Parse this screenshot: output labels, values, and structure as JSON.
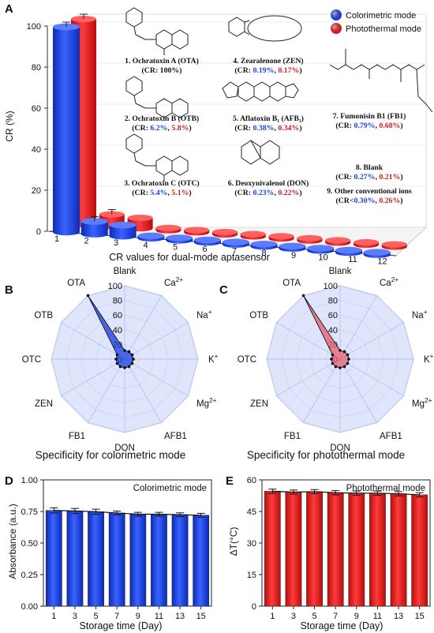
{
  "panels": {
    "A": {
      "label": "A",
      "chart_data": {
        "type": "bar",
        "title": "",
        "xlabel": "CR values for dual-mode aptasensor",
        "ylabel": "CR (%)",
        "ylim": [
          0,
          100
        ],
        "yticks": [
          "0",
          "20",
          "40",
          "60",
          "80",
          "100"
        ],
        "categories": [
          "1",
          "2",
          "3",
          "4",
          "5",
          "6",
          "7",
          "8",
          "9",
          "10",
          "11",
          "12"
        ],
        "legend_position": "top-right",
        "series": [
          {
            "name": "Colorimetric mode",
            "color": "#1a3fe0",
            "values": [
              100,
              6.2,
              5.4,
              0.19,
              0.38,
              0.23,
              0.79,
              0.27,
              0.3,
              0.3,
              0.3,
              0.3
            ]
          },
          {
            "name": "Photothermal mode",
            "color": "#e21c1c",
            "values": [
              100,
              5.8,
              5.1,
              0.17,
              0.34,
              0.22,
              0.68,
              0.21,
              0.26,
              0.26,
              0.26,
              0.26
            ]
          }
        ]
      },
      "annotations": [
        {
          "name": "1. Ochratoxin A (OTA)",
          "cr": "(CR: 100%)",
          "c": "",
          "p": ""
        },
        {
          "name": "2. Ochratoxin B (OTB)",
          "cr": "(CR: ",
          "c": "6.2%",
          "p": "5.8%"
        },
        {
          "name": "3. Ochratoxin C (OTC)",
          "cr": "(CR: ",
          "c": "5.4%",
          "p": "5.1%"
        },
        {
          "name": "4. Zearalenone (ZEN)",
          "cr": "(CR: ",
          "c": "0.19%",
          "p": "0.17%"
        },
        {
          "name": "5. Aflatoxin B₁ (AFB₁)",
          "cr": "(CR: ",
          "c": "0.38%",
          "p": "0.34%"
        },
        {
          "name": "6. Deoxynivalenol (DON)",
          "cr": "(CR: ",
          "c": "0.23%",
          "p": "0.22%"
        },
        {
          "name": "7. Fumonisin B1 (FB1)",
          "cr": "(CR: ",
          "c": "0.79%",
          "p": "0.68%"
        },
        {
          "name": "8. Blank",
          "cr": "(CR: ",
          "c": "0.27%",
          "p": "0.21%"
        },
        {
          "name": "9. Other conventional ions",
          "cr": "(CR<",
          "c": "0.30%",
          "p": "0.26%"
        }
      ]
    },
    "B": {
      "label": "B",
      "chart_data": {
        "type": "radar",
        "title": "Specificity for colorimetric mode",
        "axes": [
          "Blank",
          "Ca2+",
          "Na+",
          "K+",
          "Mg2+",
          "AFB1",
          "DON",
          "FB1",
          "ZEN",
          "OTC",
          "OTB",
          "OTA"
        ],
        "rlim": [
          0,
          100
        ],
        "rticks": [
          "0",
          "20",
          "40",
          "60",
          "80",
          "100"
        ],
        "color": "#1a3fe0",
        "values": [
          0.27,
          0.3,
          0.3,
          0.3,
          0.3,
          0.38,
          0.23,
          0.79,
          0.19,
          5.4,
          6.2,
          100
        ]
      }
    },
    "C": {
      "label": "C",
      "chart_data": {
        "type": "radar",
        "title": "Specificity for photothermal mode",
        "axes": [
          "Blank",
          "Ca2+",
          "Na+",
          "K+",
          "Mg2+",
          "AFB1",
          "DON",
          "FB1",
          "ZEN",
          "OTC",
          "OTB",
          "OTA"
        ],
        "rlim": [
          0,
          100
        ],
        "rticks": [
          "0",
          "20",
          "40",
          "60",
          "80",
          "100"
        ],
        "color": "#e86070",
        "values": [
          0.21,
          0.26,
          0.26,
          0.26,
          0.26,
          0.34,
          0.22,
          0.68,
          0.17,
          5.1,
          5.8,
          100
        ]
      }
    },
    "D": {
      "label": "D",
      "chart_data": {
        "type": "bar",
        "title": "Colorimetric mode",
        "xlabel": "Storage time (Day)",
        "ylabel": "Absorbance (a.u.)",
        "ylim": [
          0,
          1.0
        ],
        "yticks": [
          "0.00",
          "0.25",
          "0.50",
          "0.75",
          "1.00"
        ],
        "categories": [
          "1",
          "3",
          "5",
          "7",
          "9",
          "11",
          "13",
          "15"
        ],
        "color": "#1a3fe0",
        "values": [
          0.758,
          0.754,
          0.748,
          0.738,
          0.728,
          0.728,
          0.724,
          0.72
        ],
        "errors": [
          0.02,
          0.02,
          0.02,
          0.015,
          0.015,
          0.015,
          0.015,
          0.015
        ]
      }
    },
    "E": {
      "label": "E",
      "chart_data": {
        "type": "bar",
        "title": "Photothermal mode",
        "xlabel": "Storage time (Day)",
        "ylabel": "ΔT(°C)",
        "ylim": [
          0,
          60
        ],
        "yticks": [
          "0",
          "15",
          "30",
          "45",
          "60"
        ],
        "categories": [
          "1",
          "3",
          "5",
          "7",
          "9",
          "11",
          "13",
          "15"
        ],
        "color": "#e21c1c",
        "values": [
          54.6,
          54.2,
          54.4,
          53.9,
          53.7,
          53.7,
          53.4,
          52.9
        ],
        "errors": [
          1.0,
          1.0,
          1.0,
          1.0,
          1.0,
          1.0,
          1.0,
          1.0
        ]
      }
    }
  }
}
